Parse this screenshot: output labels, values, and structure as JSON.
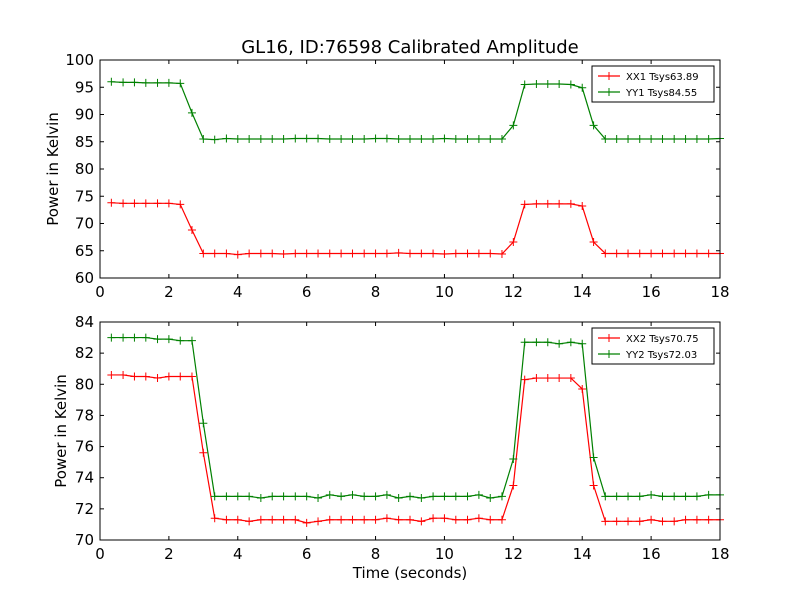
{
  "chart_data": [
    {
      "type": "line",
      "title": "GL16, ID:76598 Calibrated Amplitude",
      "xlabel": "",
      "ylabel": "Power in Kelvin",
      "xlim": [
        0,
        18
      ],
      "ylim": [
        60,
        100
      ],
      "xticks": [
        0,
        2,
        4,
        6,
        8,
        10,
        12,
        14,
        16,
        18
      ],
      "yticks": [
        60,
        65,
        70,
        75,
        80,
        85,
        90,
        95,
        100
      ],
      "grid": false,
      "legend_position": "top-right",
      "x": [
        0.33,
        0.67,
        1.0,
        1.33,
        1.67,
        2.0,
        2.33,
        2.67,
        3.0,
        3.33,
        3.67,
        4.0,
        4.33,
        4.67,
        5.0,
        5.33,
        5.67,
        6.0,
        6.33,
        6.67,
        7.0,
        7.33,
        7.67,
        8.0,
        8.33,
        8.67,
        9.0,
        9.33,
        9.67,
        10.0,
        10.33,
        10.67,
        11.0,
        11.33,
        11.67,
        12.0,
        12.33,
        12.67,
        13.0,
        13.33,
        13.67,
        14.0,
        14.33,
        14.67,
        15.0,
        15.33,
        15.67,
        16.0,
        16.33,
        16.67,
        17.0,
        17.33,
        17.67,
        18.0
      ],
      "series": [
        {
          "name": "XX1 Tsys63.89",
          "color": "#ff0000",
          "values": [
            73.8,
            73.7,
            73.7,
            73.7,
            73.7,
            73.7,
            73.5,
            68.8,
            64.5,
            64.5,
            64.5,
            64.3,
            64.5,
            64.5,
            64.5,
            64.4,
            64.5,
            64.5,
            64.5,
            64.5,
            64.5,
            64.5,
            64.5,
            64.5,
            64.5,
            64.6,
            64.5,
            64.5,
            64.5,
            64.4,
            64.5,
            64.5,
            64.5,
            64.5,
            64.4,
            66.6,
            73.5,
            73.6,
            73.6,
            73.6,
            73.6,
            73.2,
            66.6,
            64.5,
            64.5,
            64.5,
            64.5,
            64.5,
            64.5,
            64.5,
            64.5,
            64.5,
            64.5,
            64.5
          ]
        },
        {
          "name": "YY1 Tsys84.55",
          "color": "#008000",
          "values": [
            96.0,
            95.9,
            95.9,
            95.8,
            95.8,
            95.8,
            95.7,
            90.3,
            85.5,
            85.4,
            85.6,
            85.5,
            85.5,
            85.5,
            85.5,
            85.5,
            85.6,
            85.6,
            85.6,
            85.5,
            85.5,
            85.5,
            85.5,
            85.6,
            85.6,
            85.5,
            85.5,
            85.5,
            85.5,
            85.6,
            85.5,
            85.5,
            85.5,
            85.5,
            85.5,
            88.0,
            95.5,
            95.6,
            95.6,
            95.6,
            95.5,
            94.9,
            88.0,
            85.5,
            85.5,
            85.5,
            85.5,
            85.5,
            85.5,
            85.5,
            85.5,
            85.5,
            85.5,
            85.6
          ]
        }
      ]
    },
    {
      "type": "line",
      "title": "",
      "xlabel": "Time (seconds)",
      "ylabel": "Power in Kelvin",
      "xlim": [
        0,
        18
      ],
      "ylim": [
        70,
        84
      ],
      "xticks": [
        0,
        2,
        4,
        6,
        8,
        10,
        12,
        14,
        16,
        18
      ],
      "yticks": [
        70,
        72,
        74,
        76,
        78,
        80,
        82,
        84
      ],
      "grid": false,
      "legend_position": "top-right",
      "x": [
        0.33,
        0.67,
        1.0,
        1.33,
        1.67,
        2.0,
        2.33,
        2.67,
        3.0,
        3.33,
        3.67,
        4.0,
        4.33,
        4.67,
        5.0,
        5.33,
        5.67,
        6.0,
        6.33,
        6.67,
        7.0,
        7.33,
        7.67,
        8.0,
        8.33,
        8.67,
        9.0,
        9.33,
        9.67,
        10.0,
        10.33,
        10.67,
        11.0,
        11.33,
        11.67,
        12.0,
        12.33,
        12.67,
        13.0,
        13.33,
        13.67,
        14.0,
        14.33,
        14.67,
        15.0,
        15.33,
        15.67,
        16.0,
        16.33,
        16.67,
        17.0,
        17.33,
        17.67,
        18.0
      ],
      "series": [
        {
          "name": "XX2 Tsys70.75",
          "color": "#ff0000",
          "values": [
            80.6,
            80.6,
            80.5,
            80.5,
            80.4,
            80.5,
            80.5,
            80.5,
            75.6,
            71.4,
            71.3,
            71.3,
            71.2,
            71.3,
            71.3,
            71.3,
            71.3,
            71.1,
            71.2,
            71.3,
            71.3,
            71.3,
            71.3,
            71.3,
            71.4,
            71.3,
            71.3,
            71.2,
            71.4,
            71.4,
            71.3,
            71.3,
            71.4,
            71.3,
            71.3,
            73.5,
            80.3,
            80.4,
            80.4,
            80.4,
            80.4,
            79.7,
            73.5,
            71.2,
            71.2,
            71.2,
            71.2,
            71.3,
            71.2,
            71.2,
            71.3,
            71.3,
            71.3,
            71.3
          ]
        },
        {
          "name": "YY2 Tsys72.03",
          "color": "#008000",
          "values": [
            83.0,
            83.0,
            83.0,
            83.0,
            82.9,
            82.9,
            82.8,
            82.8,
            77.5,
            72.8,
            72.8,
            72.8,
            72.8,
            72.7,
            72.8,
            72.8,
            72.8,
            72.8,
            72.7,
            72.9,
            72.8,
            72.9,
            72.8,
            72.8,
            72.9,
            72.7,
            72.8,
            72.7,
            72.8,
            72.8,
            72.8,
            72.8,
            72.9,
            72.7,
            72.8,
            75.2,
            82.7,
            82.7,
            82.7,
            82.6,
            82.7,
            82.6,
            75.3,
            72.8,
            72.8,
            72.8,
            72.8,
            72.9,
            72.8,
            72.8,
            72.8,
            72.8,
            72.9,
            72.9
          ]
        }
      ]
    }
  ]
}
